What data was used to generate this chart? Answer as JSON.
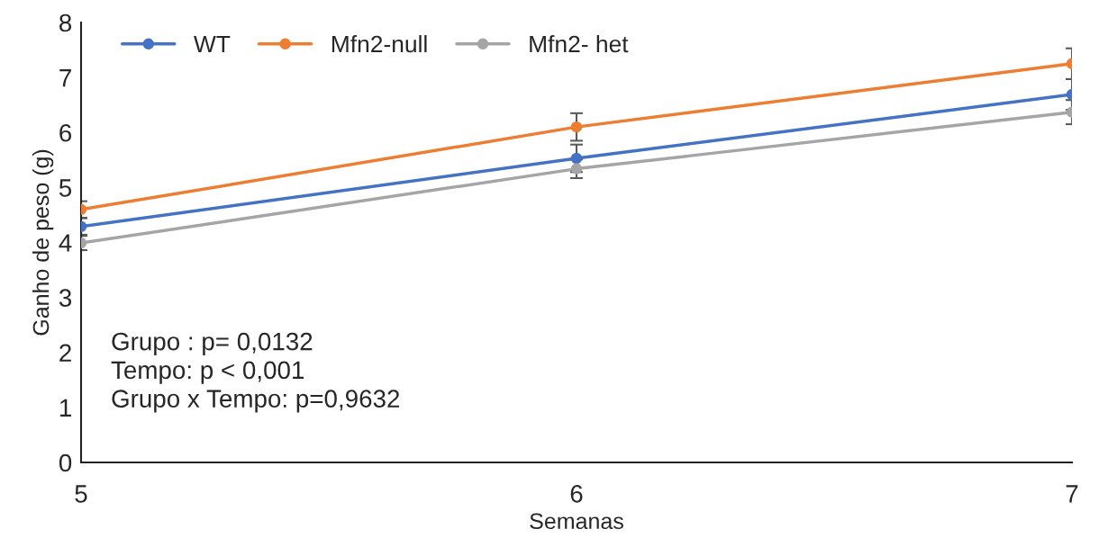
{
  "chart_data": {
    "type": "line",
    "xlabel": "Semanas",
    "ylabel": "Ganho de peso (g)",
    "x": [
      5,
      6,
      7
    ],
    "xlim": [
      5,
      7
    ],
    "xticks": [
      5,
      6,
      7
    ],
    "ylim": [
      0,
      8
    ],
    "yticks": [
      0,
      1,
      2,
      3,
      4,
      5,
      6,
      7,
      8
    ],
    "series": [
      {
        "name": "WT",
        "color": "#4472c4",
        "values": [
          4.29,
          5.53,
          6.69
        ],
        "errors": [
          0.15,
          0.25,
          0.28
        ]
      },
      {
        "name": "Mfn2-null",
        "color": "#ed7d31",
        "values": [
          4.6,
          6.1,
          7.25
        ],
        "errors": [
          0.15,
          0.25,
          0.28
        ]
      },
      {
        "name": "Mfn2- het",
        "color": "#a5a5a5",
        "values": [
          3.99,
          5.34,
          6.37
        ],
        "errors": [
          0.13,
          0.17,
          0.22
        ]
      }
    ],
    "marker": "circle",
    "line_style": "solid",
    "grid": false,
    "legend": "top left",
    "annotations": [
      "Grupo : p= 0,0132",
      "Tempo: p < 0,001",
      "Grupo x Tempo: p=0,9632"
    ]
  }
}
